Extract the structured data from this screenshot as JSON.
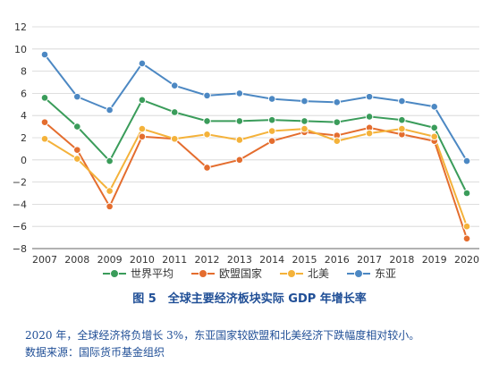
{
  "chart_data": {
    "type": "line",
    "x": [
      "2007",
      "2008",
      "2009",
      "2010",
      "2011",
      "2012",
      "2013",
      "2014",
      "2015",
      "2016",
      "2017",
      "2018",
      "2019",
      "2020"
    ],
    "ylim": [
      -8,
      12
    ],
    "yticks": [
      -8,
      -6,
      -4,
      -2,
      0,
      2,
      4,
      6,
      8,
      10,
      12
    ],
    "grid": "horizontal",
    "legend_position": "bottom",
    "series": [
      {
        "name": "世界平均",
        "color": "#3a9c5a",
        "values": [
          5.6,
          3.0,
          -0.1,
          5.4,
          4.3,
          3.5,
          3.5,
          3.6,
          3.5,
          3.4,
          3.9,
          3.6,
          2.9,
          -3.0
        ]
      },
      {
        "name": "欧盟国家",
        "color": "#e46d2e",
        "values": [
          3.4,
          0.9,
          -4.2,
          2.1,
          1.9,
          -0.7,
          0.0,
          1.7,
          2.5,
          2.2,
          2.9,
          2.3,
          1.7,
          -7.1
        ]
      },
      {
        "name": "北美",
        "color": "#f4b23a",
        "values": [
          1.9,
          0.1,
          -2.8,
          2.8,
          1.9,
          2.3,
          1.8,
          2.6,
          2.8,
          1.7,
          2.4,
          2.8,
          2.1,
          -6.0
        ]
      },
      {
        "name": "东亚",
        "color": "#4c88c3",
        "values": [
          9.5,
          5.7,
          4.5,
          8.7,
          6.7,
          5.8,
          6.0,
          5.5,
          5.3,
          5.2,
          5.7,
          5.3,
          4.8,
          -0.1
        ]
      }
    ]
  },
  "caption": "图 5　全球主要经济板块实际 GDP 年增长率",
  "note_line1": "2020 年，全球经济将负增长 3%，东亚国家较欧盟和北美经济下跌幅度相对较小。",
  "note_line2": "数据来源：国际货币基金组织"
}
